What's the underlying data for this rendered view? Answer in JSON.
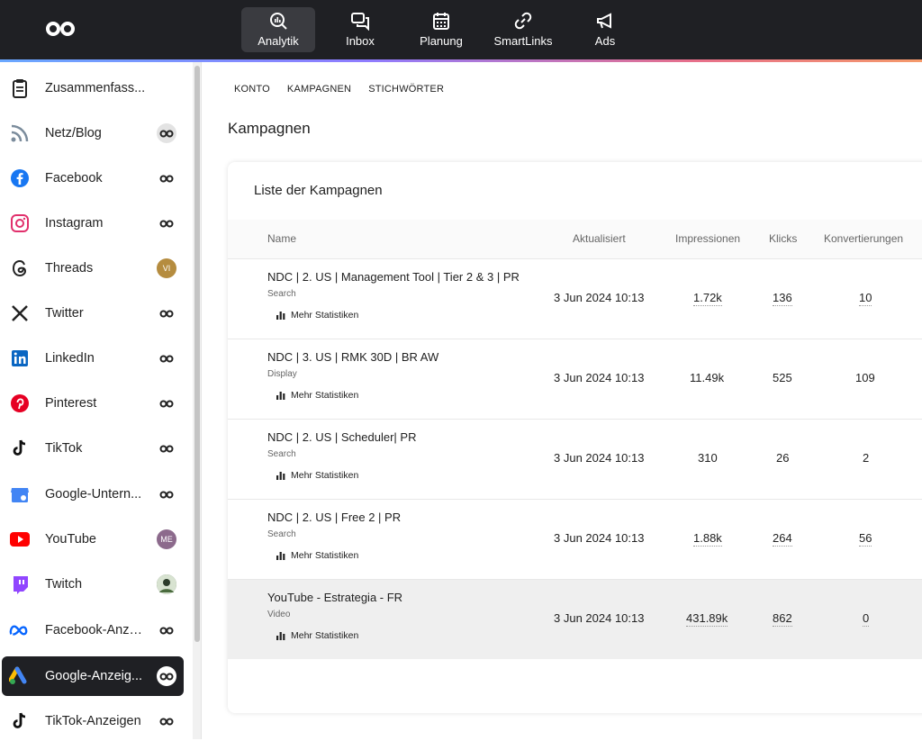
{
  "topnav": {
    "items": [
      {
        "label": "Analytik",
        "icon": "analytics-icon",
        "active": true
      },
      {
        "label": "Inbox",
        "icon": "inbox-icon"
      },
      {
        "label": "Planung",
        "icon": "calendar-icon"
      },
      {
        "label": "SmartLinks",
        "icon": "link-icon"
      },
      {
        "label": "Ads",
        "icon": "megaphone-icon"
      }
    ]
  },
  "sidebar": {
    "items": [
      {
        "label": "Zusammenfass...",
        "icon": "clipboard-icon"
      },
      {
        "label": "Netz/Blog",
        "icon": "rss-icon"
      },
      {
        "label": "Facebook",
        "icon": "facebook-icon"
      },
      {
        "label": "Instagram",
        "icon": "instagram-icon"
      },
      {
        "label": "Threads",
        "icon": "threads-icon",
        "badge": "VI"
      },
      {
        "label": "Twitter",
        "icon": "x-icon"
      },
      {
        "label": "LinkedIn",
        "icon": "linkedin-icon"
      },
      {
        "label": "Pinterest",
        "icon": "pinterest-icon"
      },
      {
        "label": "TikTok",
        "icon": "tiktok-icon"
      },
      {
        "label": "Google-Untern...",
        "icon": "google-business-icon"
      },
      {
        "label": "YouTube",
        "icon": "youtube-icon",
        "badge": "ME"
      },
      {
        "label": "Twitch",
        "icon": "twitch-icon"
      },
      {
        "label": "Facebook-Anze...",
        "icon": "meta-icon"
      },
      {
        "label": "Google-Anzeig...",
        "icon": "google-ads-icon",
        "active": true
      },
      {
        "label": "TikTok-Anzeigen",
        "icon": "tiktok-icon"
      }
    ]
  },
  "breadcrumbs": [
    "KONTO",
    "KAMPAGNEN",
    "STICHWÖRTER"
  ],
  "page_title": "Kampagnen",
  "card": {
    "title": "Liste der Kampagnen",
    "columns": [
      "Name",
      "Aktualisiert",
      "Impressionen",
      "Klicks",
      "Konvertierungen"
    ],
    "more_label": "Mehr Statistiken",
    "rows": [
      {
        "name": "NDC | 2. US | Management Tool | Tier 2 & 3 | PR",
        "type": "Search",
        "updated": "3 Jun 2024 10:13",
        "impressions": "1.72k",
        "clicks": "136",
        "conversions": "10"
      },
      {
        "name": "NDC | 3. US | RMK 30D | BR AW",
        "type": "Display",
        "updated": "3 Jun 2024 10:13",
        "impressions": "11.49k",
        "clicks": "525",
        "conversions": "109"
      },
      {
        "name": "NDC | 2. US | Scheduler| PR",
        "type": "Search",
        "updated": "3 Jun 2024 10:13",
        "impressions": "310",
        "clicks": "26",
        "conversions": "2"
      },
      {
        "name": "NDC | 2. US | Free 2 | PR",
        "type": "Search",
        "updated": "3 Jun 2024 10:13",
        "impressions": "1.88k",
        "clicks": "264",
        "conversions": "56"
      },
      {
        "name": "YouTube - Estrategia - FR",
        "type": "Video",
        "updated": "3 Jun 2024 10:13",
        "impressions": "431.89k",
        "clicks": "862",
        "conversions": "0"
      }
    ]
  },
  "colors": {
    "topbar": "#1f2024",
    "active_sidebar": "#1f2024",
    "highlight_row": "#efefef"
  }
}
